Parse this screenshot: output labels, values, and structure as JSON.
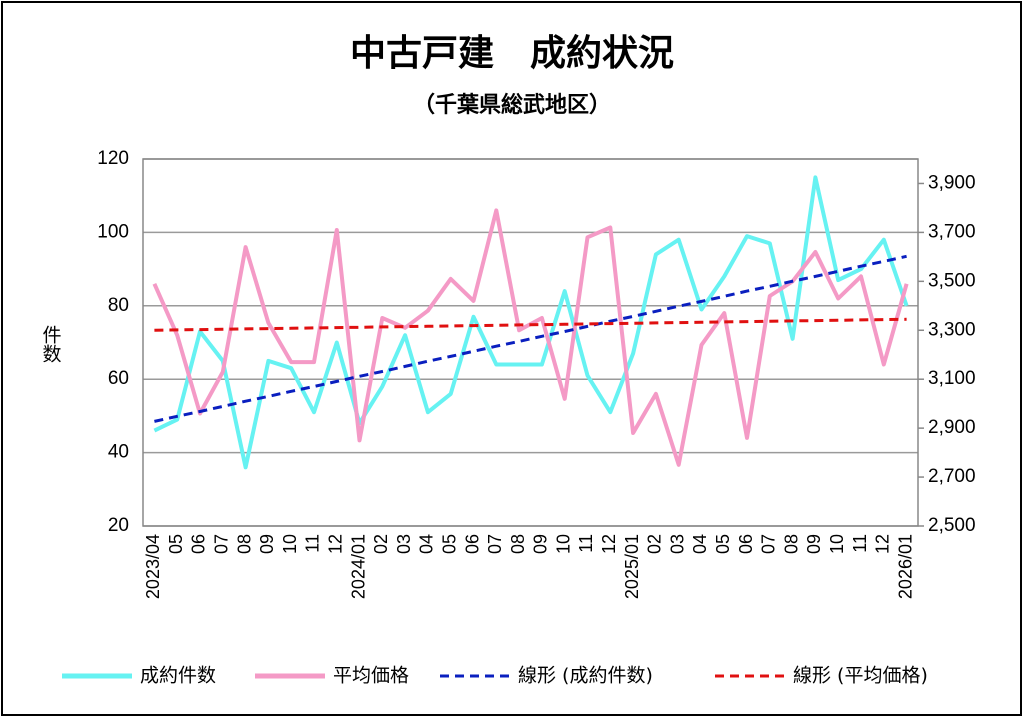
{
  "chart_data": {
    "type": "line",
    "title": "中古戸建　成約状況",
    "subtitle": "（千葉県総武地区）",
    "ylabel": "件数",
    "categories": [
      "2023/04",
      "05",
      "06",
      "07",
      "08",
      "09",
      "10",
      "11",
      "12",
      "2024/01",
      "02",
      "03",
      "04",
      "05",
      "06",
      "07",
      "08",
      "09",
      "10",
      "11",
      "12",
      "2025/01",
      "02",
      "03",
      "04",
      "05",
      "06",
      "07",
      "08",
      "09",
      "10",
      "11",
      "12",
      "2026/01"
    ],
    "ylim": [
      20,
      120
    ],
    "yticks": [
      20,
      40,
      60,
      80,
      100,
      120
    ],
    "y2lim": [
      2500,
      4000
    ],
    "y2ticks": [
      {
        "value": 2500,
        "label": "2,500"
      },
      {
        "value": 2700,
        "label": "2,700"
      },
      {
        "value": 2900,
        "label": "2,900"
      },
      {
        "value": 3100,
        "label": "3,100"
      },
      {
        "value": 3300,
        "label": "3,300"
      },
      {
        "value": 3500,
        "label": "3,500"
      },
      {
        "value": 3700,
        "label": "3,700"
      },
      {
        "value": 3900,
        "label": "3,900"
      }
    ],
    "grid": true,
    "legend": "bottom",
    "series": [
      {
        "name": "成約件数",
        "color": "#66f2f2",
        "dash": false,
        "values": [
          46,
          49,
          73,
          65,
          36,
          65,
          63,
          51,
          70,
          48,
          58,
          72,
          51,
          56,
          77,
          64,
          64,
          64,
          84,
          61,
          51,
          67,
          94,
          98,
          79,
          88,
          99,
          97,
          71,
          115,
          87,
          90,
          98,
          80
        ]
      },
      {
        "name": "平均価格",
        "color": "#f49ac6",
        "dash": false,
        "axis": "y2",
        "values": [
          3490,
          3280,
          2960,
          3130,
          3640,
          3330,
          3170,
          3170,
          3710,
          2850,
          3350,
          3310,
          3380,
          3510,
          3420,
          3790,
          3300,
          3350,
          3020,
          3680,
          3720,
          2880,
          3040,
          2750,
          3240,
          3370,
          2860,
          3440,
          3500,
          3620,
          3430,
          3520,
          3160,
          3490
        ]
      },
      {
        "name": "線形 (成約件数)",
        "color": "#0a1fbf",
        "dash": true,
        "values": [
          48.5,
          49.9,
          51.2,
          52.6,
          54.0,
          55.3,
          56.7,
          58.0,
          59.4,
          60.8,
          62.1,
          63.5,
          64.9,
          66.2,
          67.6,
          69.0,
          70.3,
          71.7,
          73.0,
          74.4,
          75.8,
          77.1,
          78.5,
          79.9,
          81.2,
          82.6,
          84.0,
          85.3,
          86.7,
          88.0,
          89.4,
          90.8,
          92.1,
          93.5
        ]
      },
      {
        "name": "線形 (平均価格)",
        "color": "#e01010",
        "dash": true,
        "axis": "y2",
        "values": [
          3300,
          3301.4,
          3302.7,
          3304.1,
          3305.5,
          3306.8,
          3308.2,
          3309.5,
          3310.9,
          3312.3,
          3313.6,
          3315,
          3316.4,
          3317.7,
          3319.1,
          3320.5,
          3321.8,
          3323.2,
          3324.5,
          3325.9,
          3327.3,
          3328.6,
          3330,
          3331.4,
          3332.7,
          3334.1,
          3335.5,
          3336.8,
          3338.2,
          3339.5,
          3340.9,
          3342.3,
          3343.6,
          3345
        ]
      }
    ]
  }
}
